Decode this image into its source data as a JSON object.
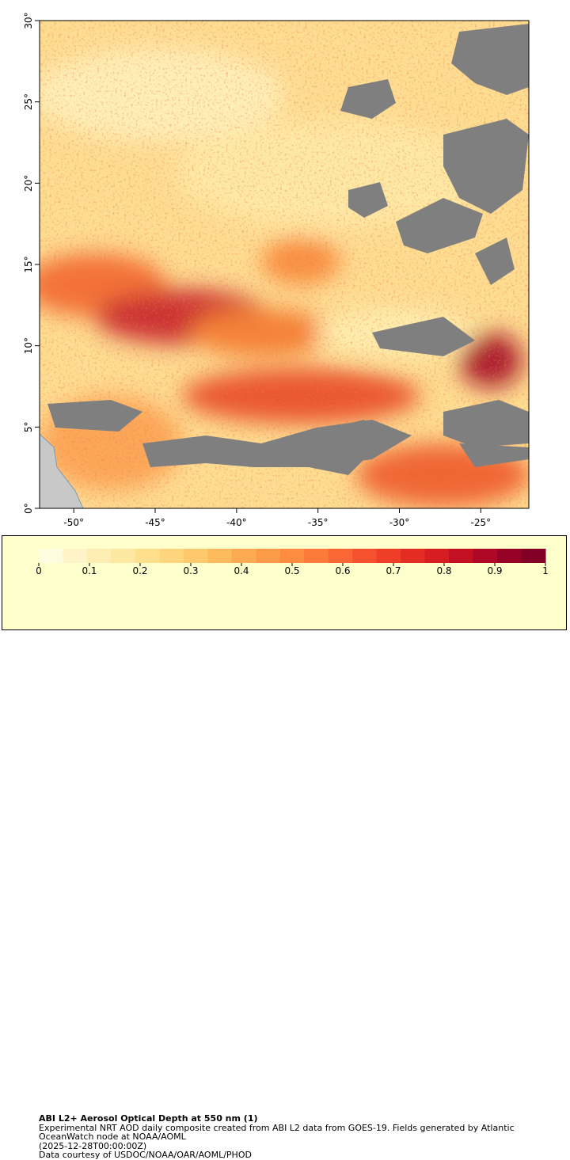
{
  "map": {
    "xlim": [
      -52.1,
      -22.05
    ],
    "ylim": [
      0,
      30
    ],
    "xticks": [
      {
        "value": -50,
        "label": "-50°"
      },
      {
        "value": -45,
        "label": "-45°"
      },
      {
        "value": -40,
        "label": "-40°"
      },
      {
        "value": -35,
        "label": "-35°"
      },
      {
        "value": -30,
        "label": "-30°"
      },
      {
        "value": -25,
        "label": "-25°"
      }
    ],
    "yticks": [
      {
        "value": 0,
        "label": "0°"
      },
      {
        "value": 5,
        "label": "5°"
      },
      {
        "value": 10,
        "label": "10°"
      },
      {
        "value": 15,
        "label": "15°"
      },
      {
        "value": 20,
        "label": "20°"
      },
      {
        "value": 25,
        "label": "25°"
      },
      {
        "value": 30,
        "label": "30°"
      }
    ]
  },
  "legend": {
    "range": [
      0,
      1
    ],
    "ticks": [
      0,
      0.1,
      0.2,
      0.3,
      0.4,
      0.5,
      0.6,
      0.7,
      0.8,
      0.9,
      1
    ],
    "colors": [
      "#fffbe0",
      "#fff4c8",
      "#ffeeb4",
      "#fee7a0",
      "#fedf8c",
      "#fed57c",
      "#fec96c",
      "#febb5e",
      "#fdab52",
      "#fd9b48",
      "#fd8b40",
      "#fc7a3a",
      "#fa6634",
      "#f5512e",
      "#ee3e28",
      "#e32c24",
      "#d51d22",
      "#c31023",
      "#ae0826",
      "#960226",
      "#800026"
    ],
    "title": "ABI L2+ Aerosol Optical Depth at 550 nm (1)",
    "lines": [
      "Experimental NRT AOD daily composite created from ABI L2 data from GOES-19. Fields generated by Atlantic OceanWatch node at NOAA/AOML",
      "(2025-12-28T00:00:00Z)",
      "Data courtesy of USDOC/NOAA/OAR/AOML/PHOD"
    ]
  }
}
